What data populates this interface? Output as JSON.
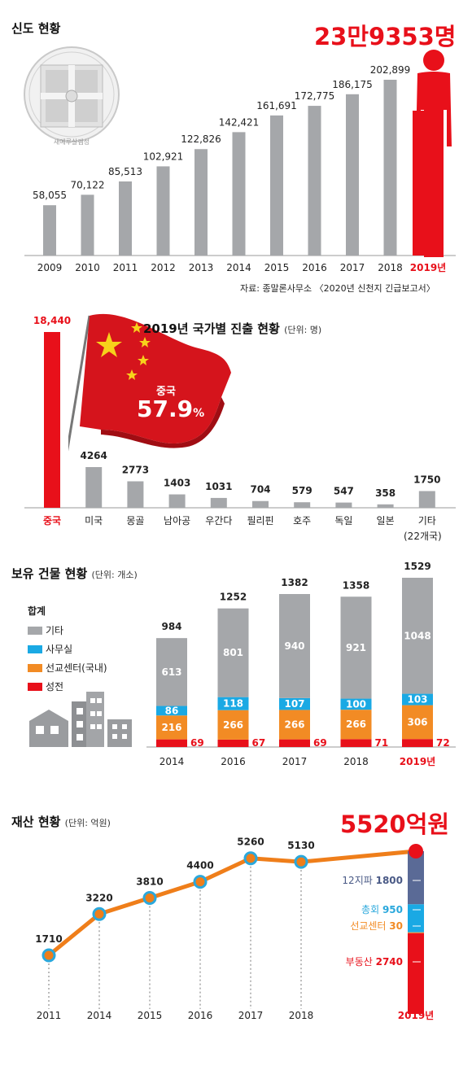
{
  "colors": {
    "gray": "#a5a7aa",
    "red": "#e8101a",
    "blue": "#1aa9e4",
    "orange": "#f28b24",
    "navy": "#5a6a96",
    "line": "#ef7e1a",
    "dot": "#2aa8dc"
  },
  "s1": {
    "title": "신도 현황",
    "headline": "23만9353명",
    "seal_text": "새예루살렘성",
    "source": "자료: 종말론사무소 〈2020년 신천지 긴급보고서〉"
  },
  "s2": {
    "title": "2019년 국가별 진출 현황",
    "unit": "(단위: 명)",
    "flag_label": "중국",
    "flag_pct": "57.9",
    "flag_pct_sign": "%",
    "etc_sub": "(22개국)"
  },
  "s3": {
    "title": "보유 건물 현황",
    "unit": "(단위: 개소)",
    "legend_title": "합계",
    "legend": [
      {
        "label": "기타",
        "color": "#a5a7aa"
      },
      {
        "label": "사무실",
        "color": "#1aa9e4"
      },
      {
        "label": "선교센터(국내)",
        "color": "#f28b24"
      },
      {
        "label": "성전",
        "color": "#e8101a"
      }
    ]
  },
  "s4": {
    "title": "재산 현황",
    "unit": "(단위: 억원)",
    "headline": "5520억원",
    "breakdown": [
      {
        "label": "12지파",
        "value": "1800"
      },
      {
        "label": "총회",
        "value": "950"
      },
      {
        "label": "선교센터",
        "value": "30"
      },
      {
        "label": "부동산",
        "value": "2740"
      }
    ]
  },
  "chart_data": [
    {
      "type": "bar",
      "title": "신도 현황",
      "categories": [
        "2009",
        "2010",
        "2011",
        "2012",
        "2013",
        "2014",
        "2015",
        "2016",
        "2017",
        "2018",
        "2019년"
      ],
      "values": [
        58055,
        70122,
        85513,
        102921,
        122826,
        142421,
        161691,
        172775,
        186175,
        202899,
        239353
      ],
      "value_labels": [
        "58,055",
        "70,122",
        "85,513",
        "102,921",
        "122,826",
        "142,421",
        "161,691",
        "172,775",
        "186,175",
        "202,899",
        ""
      ],
      "highlight": "2019년"
    },
    {
      "type": "bar",
      "title": "2019년 국가별 진출 현황",
      "categories": [
        "중국",
        "미국",
        "몽골",
        "남아공",
        "우간다",
        "필리핀",
        "호주",
        "독일",
        "일본",
        "기타"
      ],
      "values": [
        18440,
        4264,
        2773,
        1403,
        1031,
        704,
        579,
        547,
        358,
        1750
      ],
      "value_labels": [
        "18,440",
        "4264",
        "2773",
        "1403",
        "1031",
        "704",
        "579",
        "547",
        "358",
        "1750"
      ],
      "highlight": "중국"
    },
    {
      "type": "bar",
      "stacked": true,
      "title": "보유 건물 현황",
      "categories": [
        "2014",
        "2016",
        "2017",
        "2018",
        "2019년"
      ],
      "totals": [
        984,
        1252,
        1382,
        1358,
        1529
      ],
      "series": [
        {
          "name": "성전",
          "values": [
            69,
            67,
            69,
            71,
            72
          ]
        },
        {
          "name": "선교센터(국내)",
          "values": [
            216,
            266,
            266,
            266,
            306
          ]
        },
        {
          "name": "사무실",
          "values": [
            86,
            118,
            107,
            100,
            103
          ]
        },
        {
          "name": "기타",
          "values": [
            613,
            801,
            940,
            921,
            1048
          ]
        }
      ]
    },
    {
      "type": "line",
      "title": "재산 현황",
      "x": [
        "2011",
        "2014",
        "2015",
        "2016",
        "2017",
        "2018",
        "2019년"
      ],
      "values": [
        1710,
        3220,
        3810,
        4400,
        5260,
        5130,
        5520
      ],
      "value_labels": [
        "1710",
        "3220",
        "3810",
        "4400",
        "5260",
        "5130",
        ""
      ]
    }
  ]
}
